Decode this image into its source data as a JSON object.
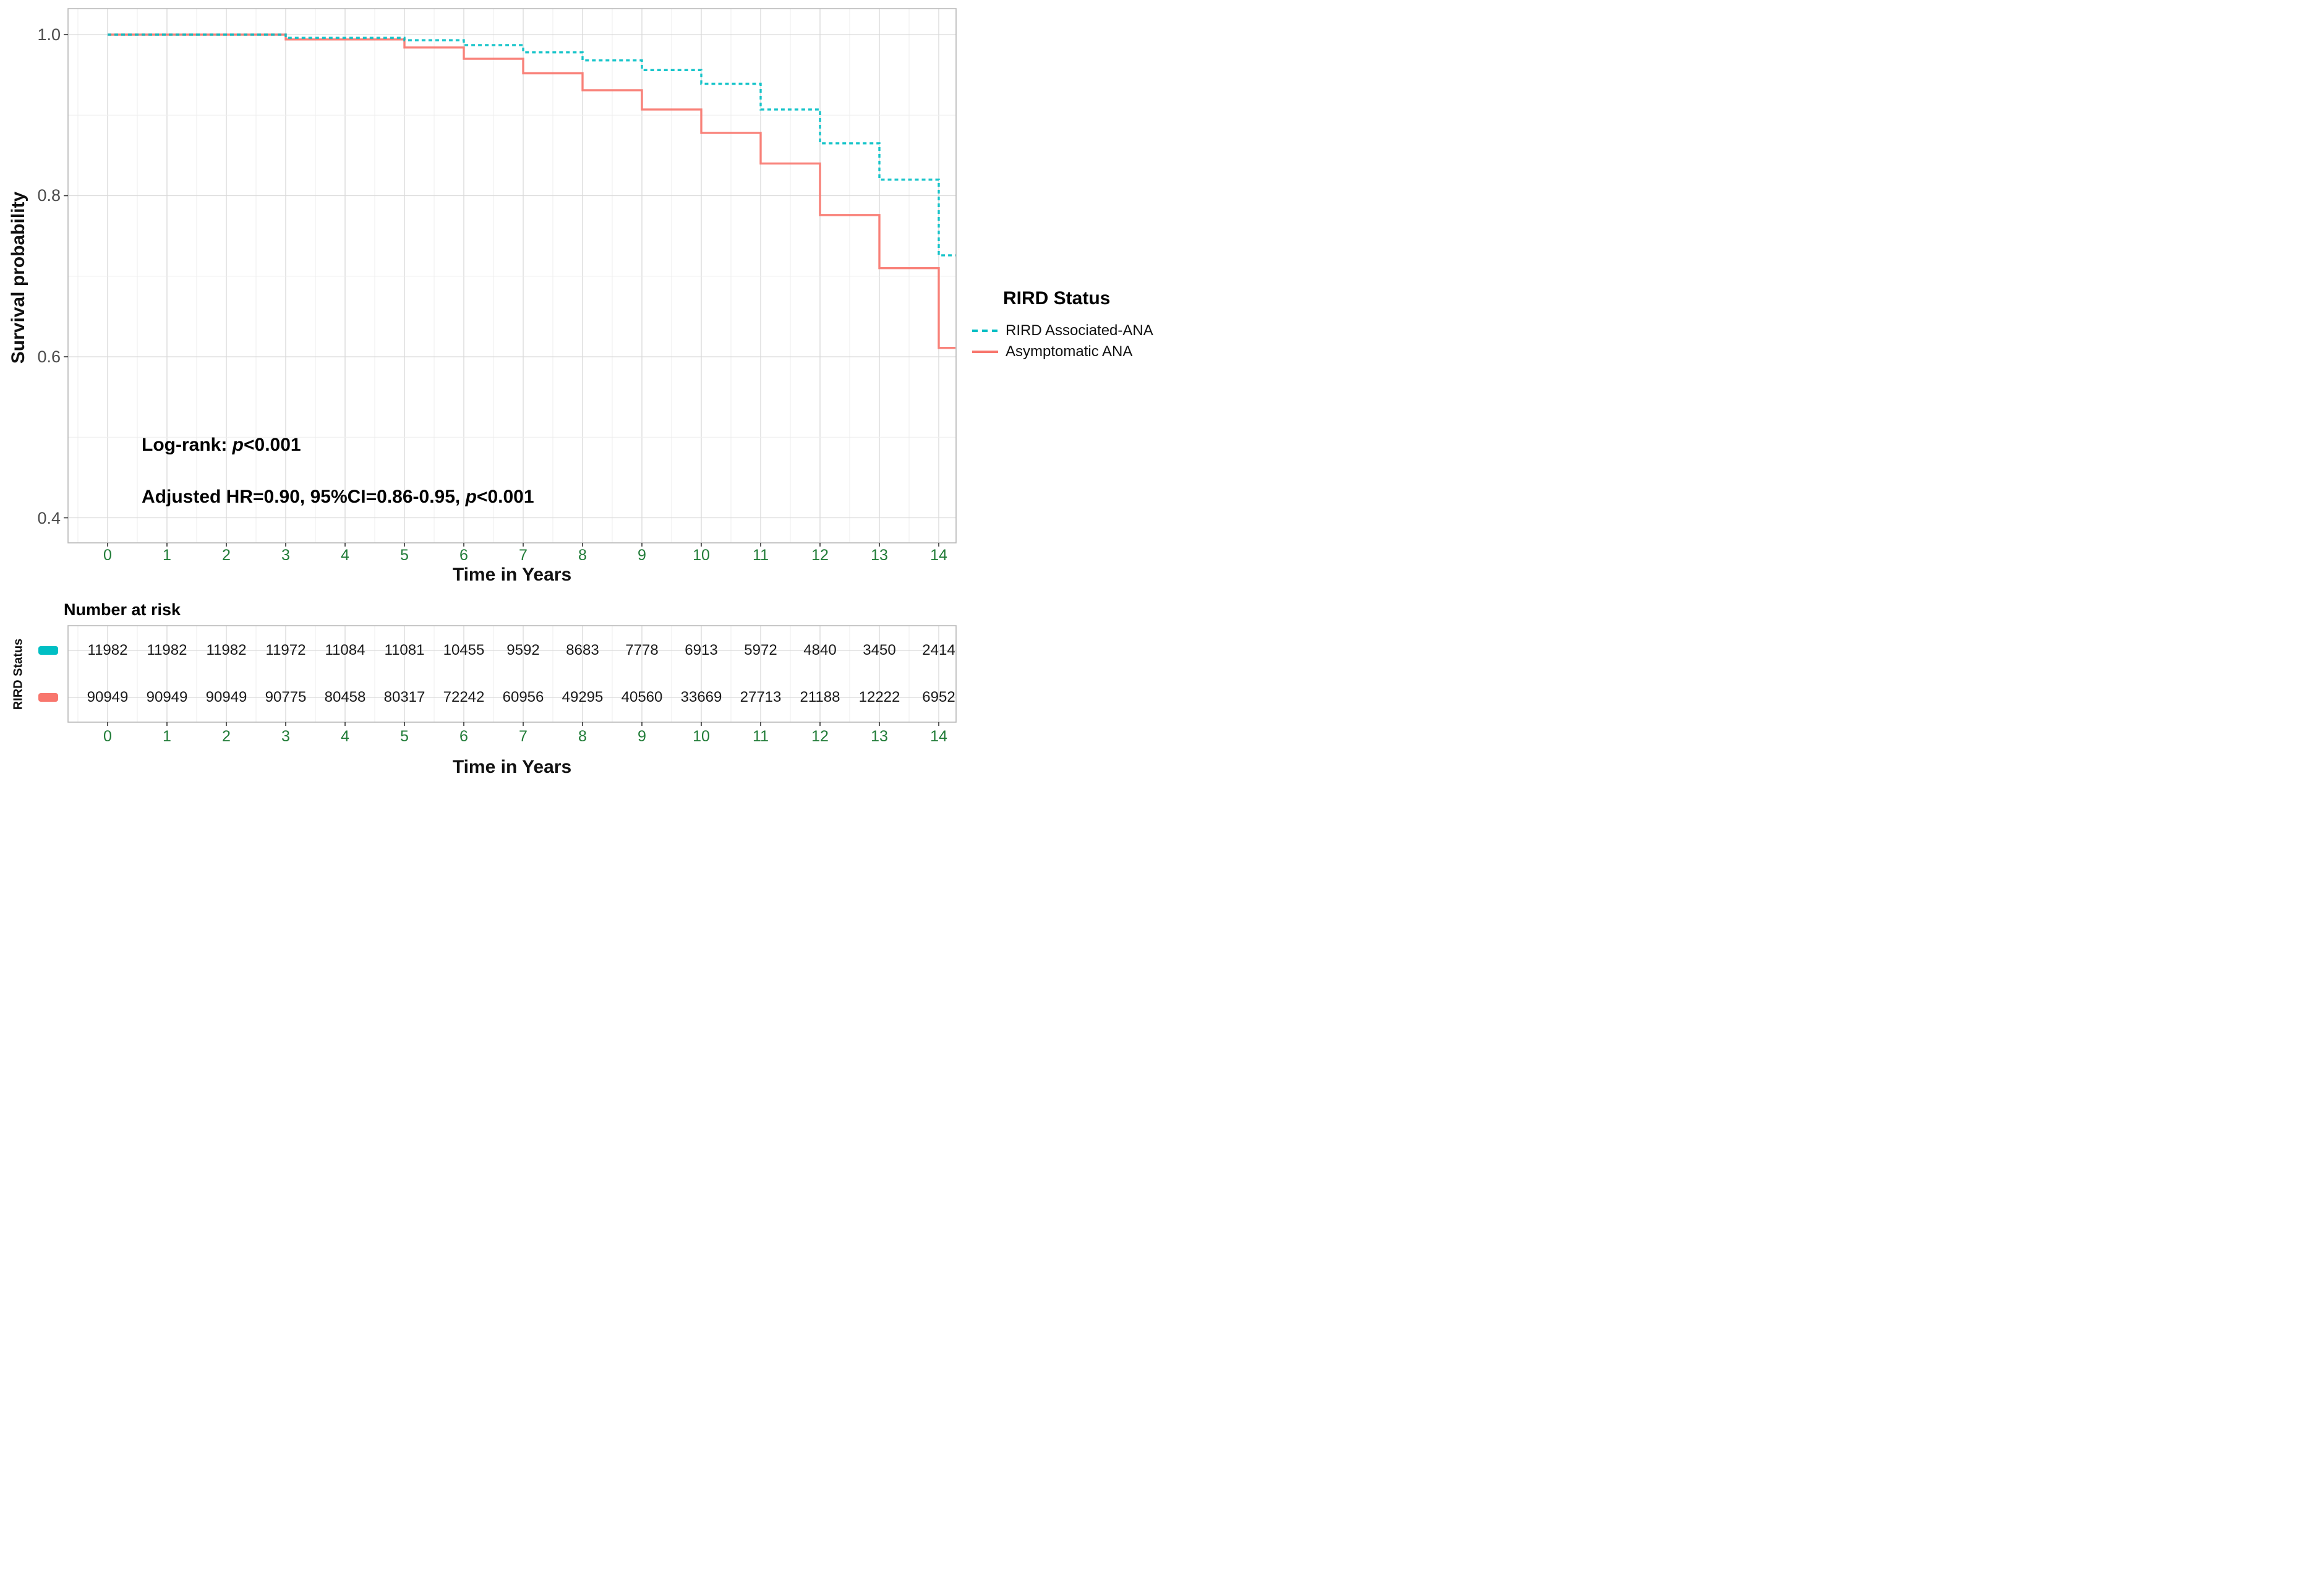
{
  "chart_data": {
    "type": "line",
    "subtype": "kaplan-meier-step",
    "title": "",
    "xlabel": "Time in Years",
    "ylabel": "Survival probability",
    "xlim": [
      -0.67,
      14.3
    ],
    "ylim": [
      0.37,
      1.03
    ],
    "x_ticks": [
      0,
      1,
      2,
      3,
      4,
      5,
      6,
      7,
      8,
      9,
      10,
      11,
      12,
      13,
      14
    ],
    "y_ticks": [
      1.0,
      0.8,
      0.6,
      0.4
    ],
    "y_tick_labels": [
      "1.0",
      "0.8",
      "0.6",
      "0.4"
    ],
    "y_grid_minor": [
      0.9,
      0.7,
      0.5
    ],
    "grid": true,
    "legend_position": "right",
    "legend_title": "RIRD Status",
    "series": [
      {
        "name": "RIRD Associated-ANA",
        "color": "#00BFC4",
        "style": "dashed",
        "steps": [
          [
            0,
            1.0
          ],
          [
            3,
            0.996
          ],
          [
            5,
            0.993
          ],
          [
            6,
            0.987
          ],
          [
            7,
            0.978
          ],
          [
            8,
            0.968
          ],
          [
            9,
            0.956
          ],
          [
            10,
            0.939
          ],
          [
            11,
            0.907
          ],
          [
            12,
            0.865
          ],
          [
            13,
            0.82
          ],
          [
            14,
            0.726
          ]
        ]
      },
      {
        "name": "Asymptomatic ANA",
        "color": "#F8766D",
        "style": "solid",
        "steps": [
          [
            0,
            1.0
          ],
          [
            3,
            0.994
          ],
          [
            5,
            0.984
          ],
          [
            6,
            0.97
          ],
          [
            7,
            0.952
          ],
          [
            8,
            0.931
          ],
          [
            9,
            0.907
          ],
          [
            10,
            0.878
          ],
          [
            11,
            0.84
          ],
          [
            12,
            0.776
          ],
          [
            13,
            0.71
          ],
          [
            14,
            0.611
          ]
        ]
      }
    ],
    "annotations": [
      {
        "pre": "Log-rank: ",
        "p": "p",
        "post": "<0.001"
      },
      {
        "pre": "Adjusted HR=0.90, 95%CI=0.86-0.95, ",
        "p": "p",
        "post": "<0.001"
      }
    ]
  },
  "risk_table": {
    "title": "Number at risk",
    "axis_label": "RIRD Status",
    "xlabel": "Time in Years",
    "x_ticks": [
      0,
      1,
      2,
      3,
      4,
      5,
      6,
      7,
      8,
      9,
      10,
      11,
      12,
      13,
      14
    ],
    "rows": [
      {
        "name": "RIRD Associated-ANA",
        "color": "#00BFC4",
        "counts": [
          11982,
          11982,
          11982,
          11972,
          11084,
          11081,
          10455,
          9592,
          8683,
          7778,
          6913,
          5972,
          4840,
          3450,
          2414
        ]
      },
      {
        "name": "Asymptomatic ANA",
        "color": "#F8766D",
        "counts": [
          90949,
          90949,
          90949,
          90775,
          80458,
          80317,
          72242,
          60956,
          49295,
          40560,
          33669,
          27713,
          21188,
          12222,
          6952
        ]
      }
    ]
  },
  "colors": {
    "teal_series": "#00BFC4",
    "red_series": "#F8766D",
    "x_tick_label_green": "#217c38",
    "y_tick_label_gray": "#4b4b4b"
  }
}
